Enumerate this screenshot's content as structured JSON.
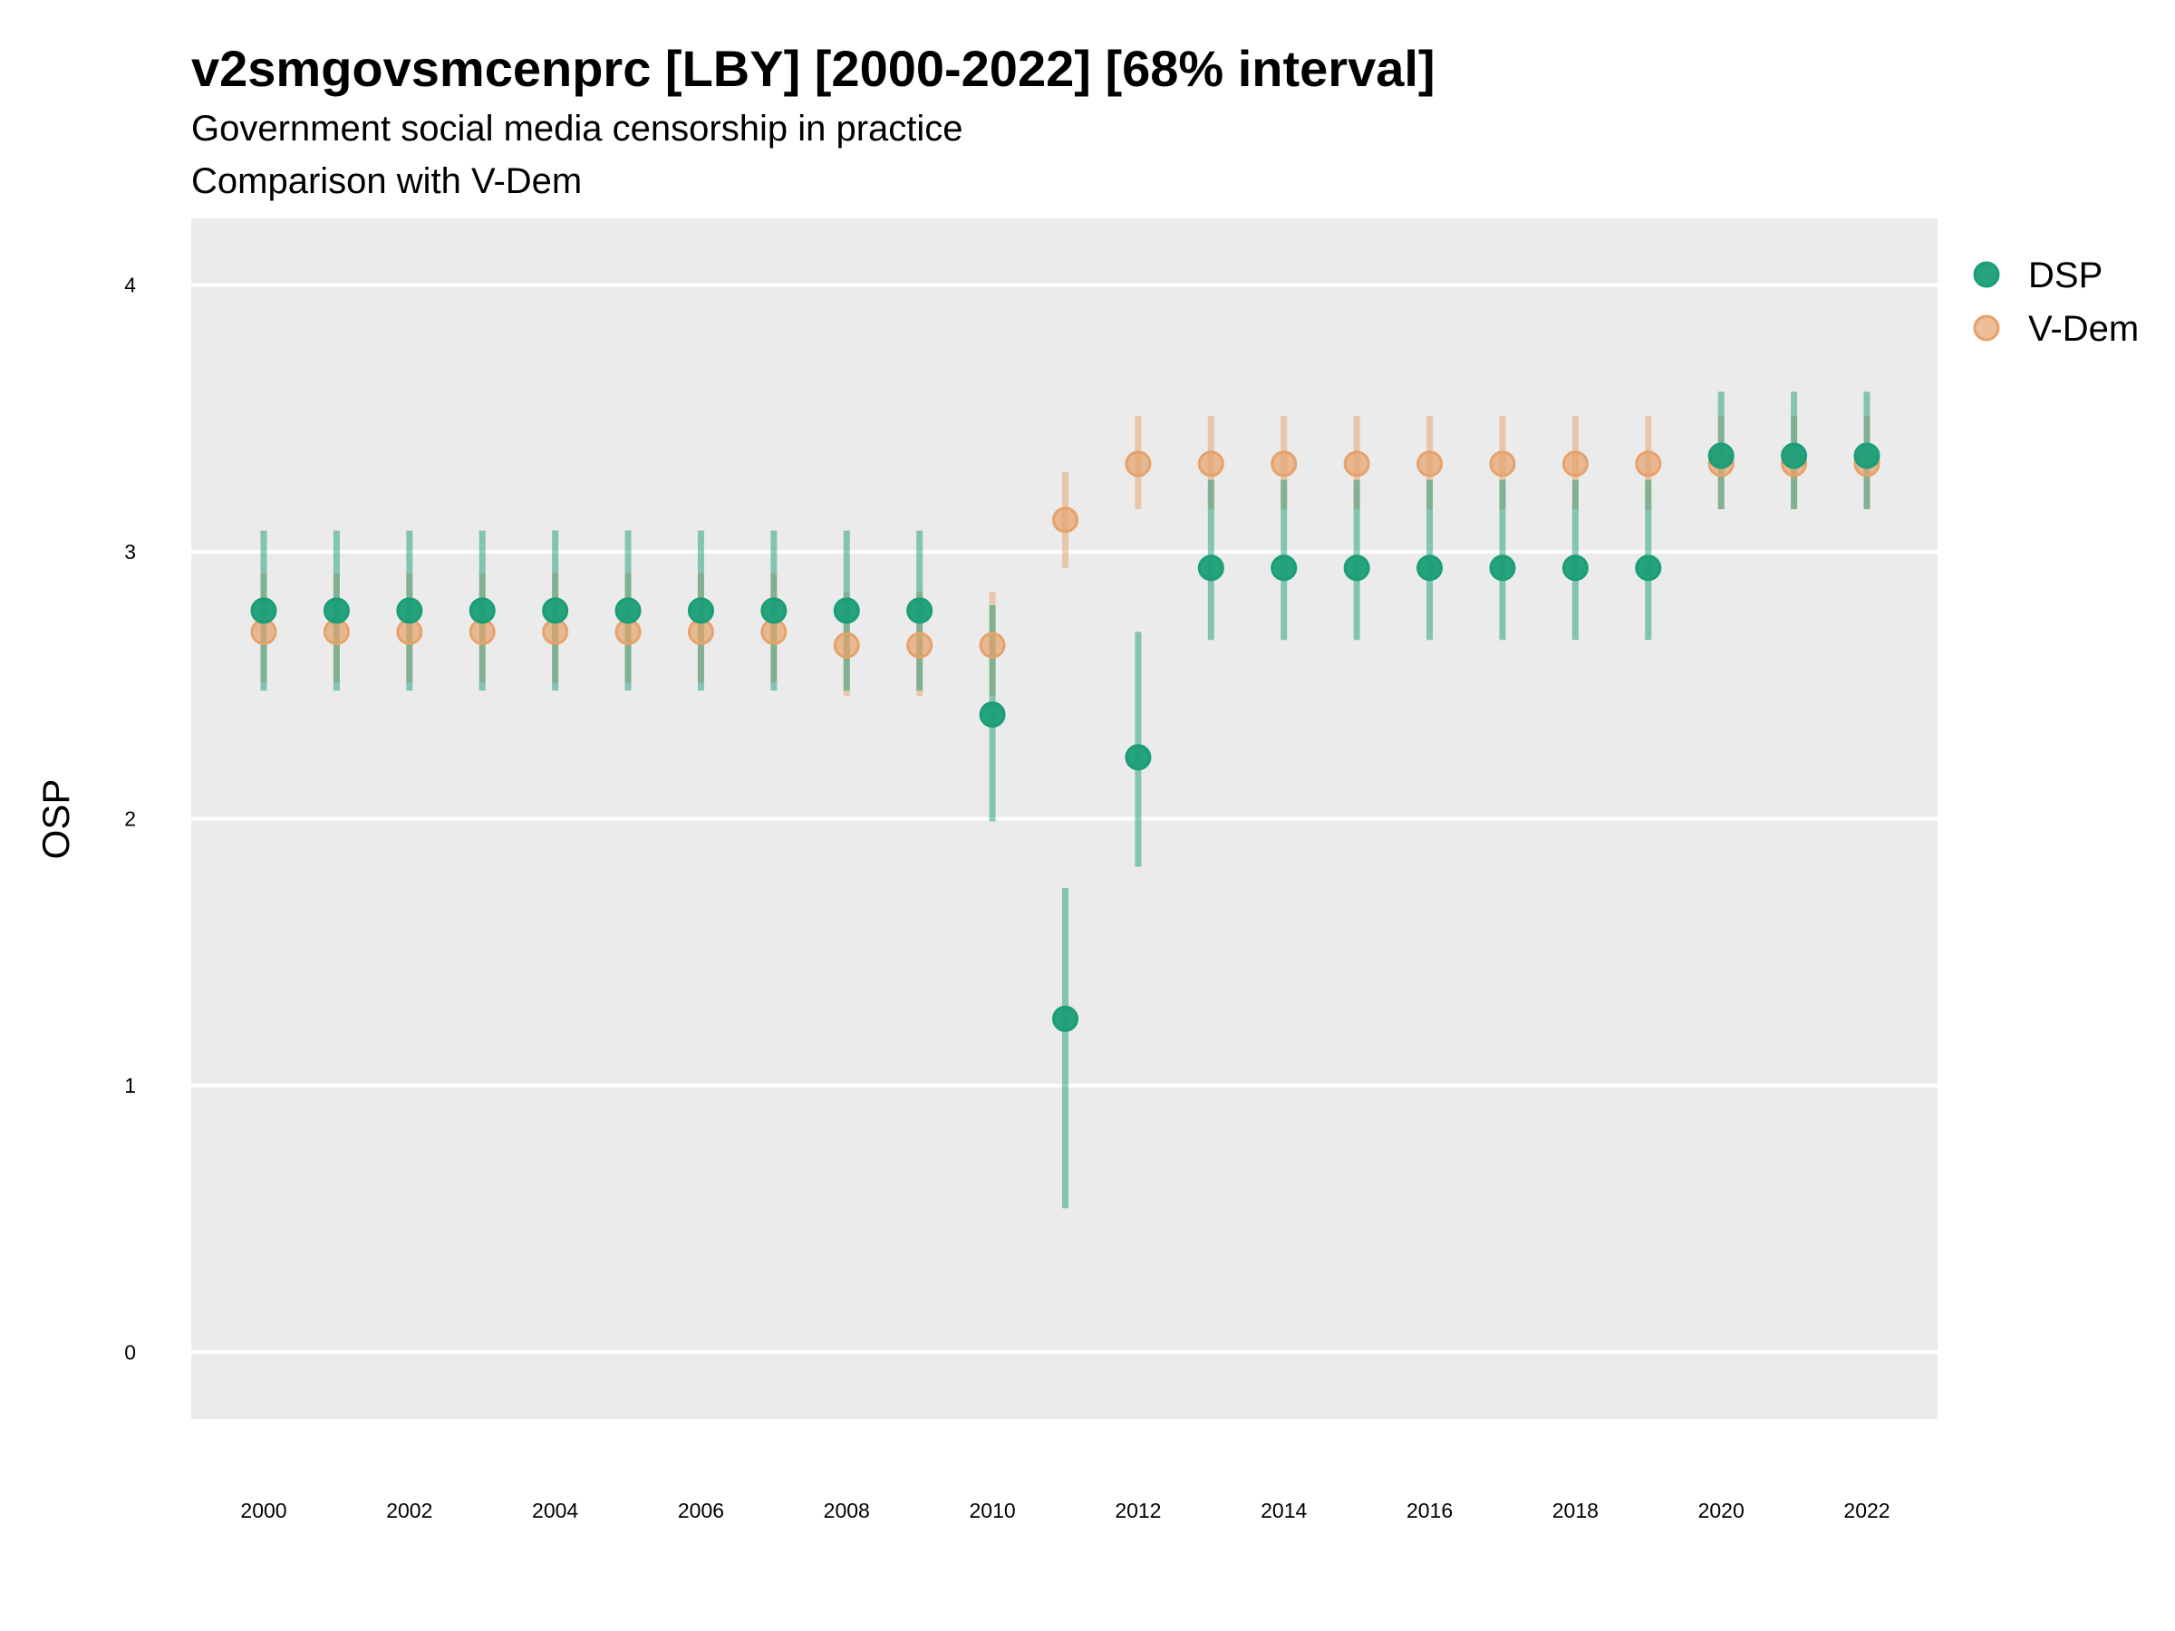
{
  "chart_data": {
    "type": "scatter",
    "title": "v2smgovsmcenprc [LBY] [2000-2022] [68% interval]",
    "subtitle": "Government social media censorship in practice",
    "caption_line": "Comparison with V-Dem",
    "xlabel": "",
    "ylabel": "OSP",
    "ylim": [
      -0.25,
      4.25
    ],
    "xlim": [
      1999,
      2023
    ],
    "yticks": [
      0,
      1,
      2,
      3,
      4
    ],
    "xticks": [
      2000,
      2002,
      2004,
      2006,
      2008,
      2010,
      2012,
      2014,
      2016,
      2018,
      2020,
      2022
    ],
    "grid": true,
    "legend_position": "right",
    "x": [
      2000,
      2001,
      2002,
      2003,
      2004,
      2005,
      2006,
      2007,
      2008,
      2009,
      2010,
      2011,
      2012,
      2013,
      2014,
      2015,
      2016,
      2017,
      2018,
      2019,
      2020,
      2021,
      2022
    ],
    "series": [
      {
        "name": "DSP",
        "color": "#1b9e77",
        "values": [
          2.78,
          2.78,
          2.78,
          2.78,
          2.78,
          2.78,
          2.78,
          2.78,
          2.78,
          2.78,
          2.39,
          1.25,
          2.23,
          2.94,
          2.94,
          2.94,
          2.94,
          2.94,
          2.94,
          2.94,
          3.36,
          3.36,
          3.36
        ],
        "lower": [
          2.48,
          2.48,
          2.48,
          2.48,
          2.48,
          2.48,
          2.48,
          2.48,
          2.48,
          2.48,
          1.99,
          0.54,
          1.82,
          2.67,
          2.67,
          2.67,
          2.67,
          2.67,
          2.67,
          2.67,
          3.16,
          3.16,
          3.16
        ],
        "upper": [
          3.08,
          3.08,
          3.08,
          3.08,
          3.08,
          3.08,
          3.08,
          3.08,
          3.08,
          3.08,
          2.8,
          1.74,
          2.7,
          3.27,
          3.27,
          3.27,
          3.27,
          3.27,
          3.27,
          3.27,
          3.6,
          3.6,
          3.6
        ]
      },
      {
        "name": "V-Dem",
        "color": "#e6a26b",
        "values": [
          2.7,
          2.7,
          2.7,
          2.7,
          2.7,
          2.7,
          2.7,
          2.7,
          2.65,
          2.65,
          2.65,
          3.12,
          3.33,
          3.33,
          3.33,
          3.33,
          3.33,
          3.33,
          3.33,
          3.33,
          3.33,
          3.33,
          3.33
        ],
        "lower": [
          2.51,
          2.51,
          2.51,
          2.51,
          2.51,
          2.51,
          2.51,
          2.51,
          2.46,
          2.46,
          2.46,
          2.94,
          3.16,
          3.16,
          3.16,
          3.16,
          3.16,
          3.16,
          3.16,
          3.16,
          3.16,
          3.16,
          3.16
        ],
        "upper": [
          2.92,
          2.92,
          2.92,
          2.92,
          2.92,
          2.92,
          2.92,
          2.92,
          2.85,
          2.85,
          2.85,
          3.3,
          3.51,
          3.51,
          3.51,
          3.51,
          3.51,
          3.51,
          3.51,
          3.51,
          3.51,
          3.51,
          3.51
        ]
      }
    ]
  }
}
